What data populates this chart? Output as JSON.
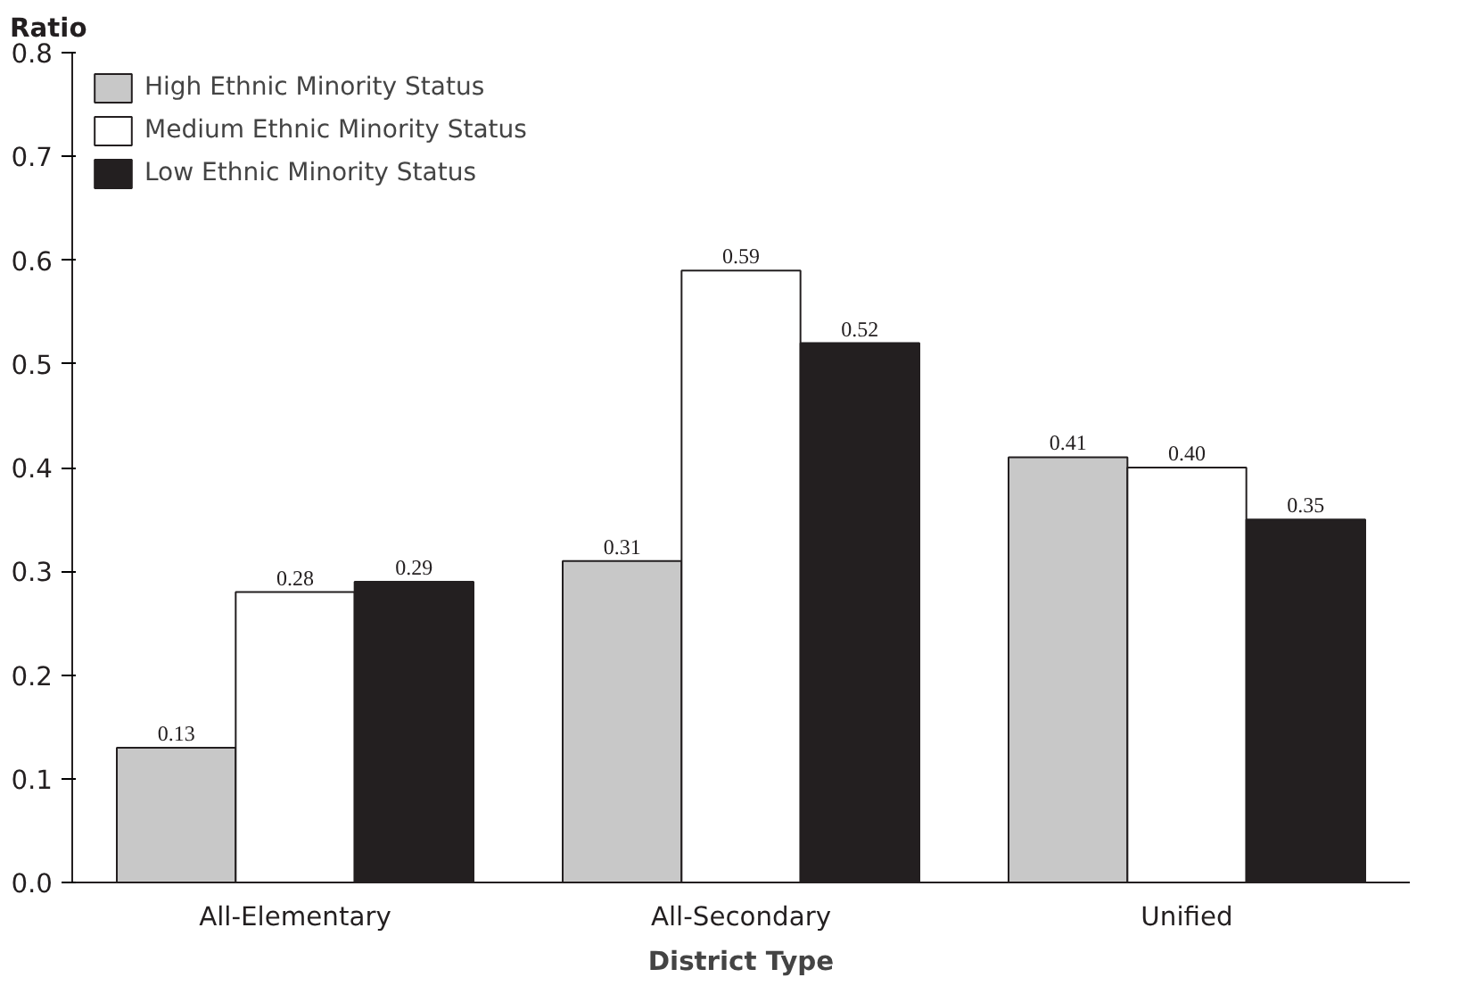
{
  "chart_data": {
    "type": "bar",
    "xlabel": "District Type",
    "ylabel": "Ratio",
    "categories": [
      "All-Elementary",
      "All-Secondary",
      "Unified"
    ],
    "series": [
      {
        "name": "High Ethnic Minority Status",
        "color": "#c8c8c8",
        "values": [
          0.13,
          0.31,
          0.41
        ],
        "value_labels": [
          "0.13",
          "0.31",
          "0.41"
        ]
      },
      {
        "name": "Medium Ethnic Minority Status",
        "color": "#ffffff",
        "values": [
          0.28,
          0.59,
          0.4
        ],
        "value_labels": [
          "0.28",
          "0.59",
          "0.40"
        ]
      },
      {
        "name": "Low Ethnic Minority Status",
        "color": "#231f20",
        "values": [
          0.29,
          0.52,
          0.35
        ],
        "value_labels": [
          "0.29",
          "0.52",
          "0.35"
        ]
      }
    ],
    "ylim": [
      0,
      0.8
    ],
    "yticks": [
      {
        "value": 0,
        "label": "0.0"
      },
      0.1,
      0.2,
      0.3,
      0.4,
      0.5,
      0.6,
      0.7,
      0.8
    ],
    "grid": false,
    "legend": "top left"
  }
}
